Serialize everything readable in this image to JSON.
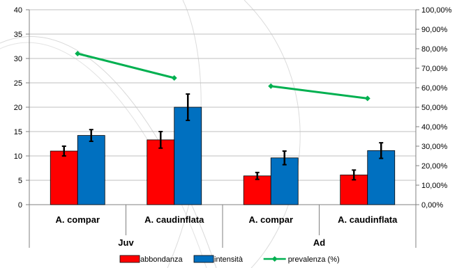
{
  "chart_data": {
    "type": "bar",
    "groups": [
      "Juv",
      "Ad"
    ],
    "categories": [
      "A. compar",
      "A. caudinflata",
      "A. compar",
      "A. caudinflata"
    ],
    "category_group": [
      0,
      0,
      1,
      1
    ],
    "series": [
      {
        "name": "abbondanza",
        "type": "bar",
        "axis": "left",
        "color": "#ff0000",
        "values": [
          11.0,
          13.3,
          5.9,
          6.1
        ],
        "errors": [
          1.0,
          1.7,
          0.7,
          1.0
        ]
      },
      {
        "name": "intensità",
        "type": "bar",
        "axis": "left",
        "color": "#0070c0",
        "values": [
          14.2,
          20.0,
          9.6,
          11.1
        ],
        "errors": [
          1.2,
          2.7,
          1.4,
          1.6
        ]
      },
      {
        "name": "prevalenza (%)",
        "type": "line",
        "axis": "right",
        "color": "#00b050",
        "values": [
          77.5,
          65.0,
          60.8,
          54.5
        ],
        "segments": [
          [
            0,
            1
          ],
          [
            2,
            3
          ]
        ]
      }
    ],
    "ylim": [
      0,
      40
    ],
    "yticks": [
      "0",
      "5",
      "10",
      "15",
      "20",
      "25",
      "30",
      "35",
      "40"
    ],
    "y2lim": [
      0,
      100
    ],
    "y2ticks": [
      "0,00%",
      "10,00%",
      "20,00%",
      "30,00%",
      "40,00%",
      "50,00%",
      "60,00%",
      "70,00%",
      "80,00%",
      "90,00%",
      "100,00%"
    ],
    "grid": true,
    "legend": "bottom"
  }
}
